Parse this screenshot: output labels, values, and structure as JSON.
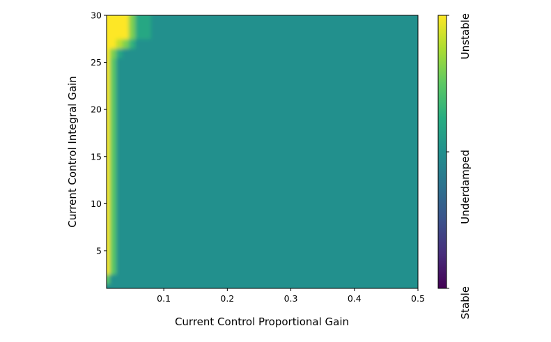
{
  "chart_data": {
    "type": "heatmap",
    "title": "",
    "xlabel": "Current Control Proportional Gain",
    "ylabel": "Current Control Integral Gain",
    "xlim": [
      0.01,
      0.5
    ],
    "ylim": [
      1,
      30
    ],
    "xticks": [
      0.1,
      0.2,
      0.3,
      0.4,
      0.5
    ],
    "xtick_labels": [
      "0.1",
      "0.2",
      "0.3",
      "0.4",
      "0.5"
    ],
    "yticks": [
      5,
      10,
      15,
      20,
      25,
      30
    ],
    "ytick_labels": [
      "5",
      "10",
      "15",
      "20",
      "25",
      "30"
    ],
    "x": [
      0.01,
      0.02,
      0.03,
      0.04,
      0.05,
      0.06,
      0.1,
      0.2,
      0.3,
      0.4,
      0.5
    ],
    "y": [
      1,
      2,
      3,
      5,
      10,
      15,
      20,
      25,
      26,
      27,
      28,
      29,
      30
    ],
    "z_rows_by_y": [
      [
        1,
        1,
        1,
        1,
        1,
        1,
        1,
        1,
        1,
        1,
        1
      ],
      [
        1.5,
        1,
        1,
        1,
        1,
        1,
        1,
        1,
        1,
        1,
        1
      ],
      [
        2,
        1.5,
        1,
        1,
        1,
        1,
        1,
        1,
        1,
        1,
        1
      ],
      [
        2,
        1.5,
        1,
        1,
        1,
        1,
        1,
        1,
        1,
        1,
        1
      ],
      [
        2,
        1.5,
        1,
        1,
        1,
        1,
        1,
        1,
        1,
        1,
        1
      ],
      [
        2,
        1.5,
        1,
        1,
        1,
        1,
        1,
        1,
        1,
        1,
        1
      ],
      [
        2,
        1.5,
        1,
        1,
        1,
        1,
        1,
        1,
        1,
        1,
        1
      ],
      [
        2,
        1.5,
        1,
        1,
        1,
        1,
        1,
        1,
        1,
        1,
        1
      ],
      [
        2,
        1.6,
        1.2,
        1,
        1,
        1,
        1,
        1,
        1,
        1,
        1
      ],
      [
        2,
        2,
        1.8,
        1.6,
        1.3,
        1,
        1,
        1,
        1,
        1,
        1
      ],
      [
        2,
        2,
        2,
        2,
        1.6,
        1.2,
        1,
        1,
        1,
        1,
        1
      ],
      [
        2,
        2,
        2,
        2,
        1.6,
        1.2,
        1,
        1,
        1,
        1,
        1
      ],
      [
        2,
        2,
        2,
        2,
        1.6,
        1.2,
        1,
        1,
        1,
        1,
        1
      ]
    ],
    "colormap": "viridis",
    "colorbar": {
      "range": [
        0,
        2
      ],
      "ticks": [
        0,
        1,
        2
      ],
      "tick_labels": [
        "Stable",
        "Underdamped",
        "Unstable"
      ]
    },
    "grid": false
  }
}
